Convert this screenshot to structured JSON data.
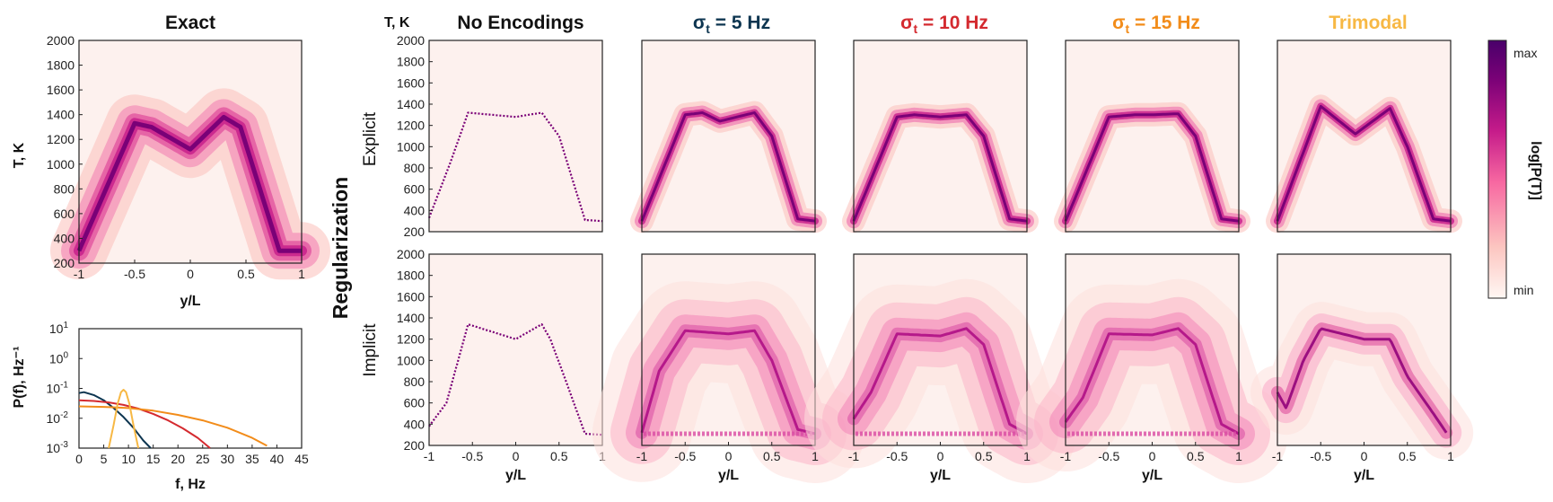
{
  "colors": {
    "background_fill": "#fdf1ee",
    "frame": "#222222",
    "sigma5": "#0d3550",
    "sigma10": "#d42a2f",
    "sigma15": "#f28c1a",
    "trimodal": "#f7b844",
    "colormap": [
      "#fff7f3",
      "#fcc5c0",
      "#f768a1",
      "#c51b8a",
      "#7a0177",
      "#49006a"
    ]
  },
  "titles": {
    "exact": "Exact",
    "no_enc": "No Encodings",
    "s5": "5 Hz",
    "s10": "10 Hz",
    "s15": "15 Hz",
    "trimodal": "Trimodal",
    "sigma_symbol": "σ",
    "sigma_sub": "t",
    "sigma_eq": " = "
  },
  "labels": {
    "T_axis": "T, K",
    "x_axis": "y/L",
    "f_axis": "f, Hz",
    "P_axis": "P(f), Hz⁻¹",
    "regularization": "Regularization",
    "explicit": "Explicit",
    "implicit": "Implicit"
  },
  "colorbar": {
    "max": "max",
    "min": "min",
    "label": "log[P(T)]"
  },
  "chart_data": [
    {
      "type": "heatmap",
      "title": "Exact",
      "xlabel": "y/L",
      "ylabel": "T, K",
      "xlim": [
        -1,
        1
      ],
      "ylim": [
        200,
        2000
      ],
      "xticks": [
        "-1",
        "-0.5",
        "0",
        "0.5",
        "1"
      ],
      "yticks": [
        "200",
        "400",
        "600",
        "800",
        "1000",
        "1200",
        "1400",
        "1600",
        "1800",
        "2000"
      ],
      "mean_profile": {
        "x": [
          -1,
          -0.5,
          -0.35,
          0,
          0.3,
          0.45,
          0.8,
          1
        ],
        "y": [
          300,
          1330,
          1300,
          1120,
          1380,
          1300,
          300,
          300
        ]
      }
    },
    {
      "type": "line",
      "xlabel": "f, Hz",
      "ylabel": "P(f), Hz⁻¹",
      "xlim": [
        0,
        45
      ],
      "ylim": [
        0.001,
        10
      ],
      "yscale": "log",
      "xticks": [
        "0",
        "5",
        "10",
        "15",
        "20",
        "25",
        "30",
        "35",
        "40",
        "45"
      ],
      "yticks": [
        [
          "0.001",
          "10",
          "-3"
        ],
        [
          "0.01",
          "10",
          "-2"
        ],
        [
          "0.1",
          "10",
          "-1"
        ],
        [
          "1",
          "10",
          "0"
        ],
        [
          "10",
          "10",
          "1"
        ]
      ],
      "series": [
        {
          "color": "#0d3550",
          "x": [
            0,
            1,
            3,
            5,
            7,
            9,
            11,
            13,
            14.5
          ],
          "y": [
            0.07,
            0.075,
            0.06,
            0.04,
            0.022,
            0.011,
            0.0048,
            0.0018,
            0.001
          ]
        },
        {
          "color": "#d42a2f",
          "x": [
            0,
            3,
            6,
            9,
            12,
            15,
            18,
            21,
            24,
            26.5
          ],
          "y": [
            0.04,
            0.038,
            0.034,
            0.028,
            0.021,
            0.014,
            0.0085,
            0.0046,
            0.0022,
            0.001
          ]
        },
        {
          "color": "#f28c1a",
          "x": [
            0,
            5,
            10,
            15,
            20,
            25,
            30,
            35,
            38
          ],
          "y": [
            0.025,
            0.024,
            0.022,
            0.018,
            0.013,
            0.0085,
            0.0048,
            0.0022,
            0.0012
          ]
        },
        {
          "color": "#f7b844",
          "x": [
            6,
            7,
            7.8,
            8.5,
            9,
            9.5,
            10.2,
            11,
            12
          ],
          "y": [
            0.001,
            0.006,
            0.03,
            0.075,
            0.09,
            0.075,
            0.03,
            0.006,
            0.001
          ]
        }
      ]
    },
    {
      "type": "heatmap",
      "title": "No Encodings",
      "row": "Explicit",
      "xlim": [
        -1,
        1
      ],
      "ylim": [
        200,
        2000
      ],
      "mean_profile": {
        "x": [
          -1,
          -0.75,
          -0.55,
          0,
          0.3,
          0.5,
          0.8,
          1
        ],
        "y": [
          330,
          860,
          1320,
          1280,
          1320,
          1100,
          310,
          300
        ]
      }
    },
    {
      "type": "heatmap",
      "title": "σt = 5 Hz",
      "row": "Explicit",
      "xlim": [
        -1,
        1
      ],
      "ylim": [
        200,
        2000
      ],
      "mean_profile": {
        "x": [
          -1,
          -0.5,
          -0.3,
          -0.1,
          0.3,
          0.5,
          0.8,
          1
        ],
        "y": [
          300,
          1300,
          1320,
          1240,
          1320,
          1100,
          320,
          300
        ]
      }
    },
    {
      "type": "heatmap",
      "title": "σt = 10 Hz",
      "row": "Explicit",
      "xlim": [
        -1,
        1
      ],
      "ylim": [
        200,
        2000
      ],
      "mean_profile": {
        "x": [
          -1,
          -0.5,
          -0.3,
          0,
          0.3,
          0.5,
          0.8,
          1
        ],
        "y": [
          300,
          1280,
          1300,
          1280,
          1300,
          1100,
          320,
          300
        ]
      }
    },
    {
      "type": "heatmap",
      "title": "σt = 15 Hz",
      "row": "Explicit",
      "xlim": [
        -1,
        1
      ],
      "ylim": [
        200,
        2000
      ],
      "mean_profile": {
        "x": [
          -1,
          -0.5,
          -0.2,
          0,
          0.3,
          0.5,
          0.8,
          1
        ],
        "y": [
          300,
          1280,
          1300,
          1300,
          1310,
          1100,
          320,
          300
        ]
      }
    },
    {
      "type": "heatmap",
      "title": "Trimodal",
      "row": "Explicit",
      "xlim": [
        -1,
        1
      ],
      "ylim": [
        200,
        2000
      ],
      "mean_profile": {
        "x": [
          -1,
          -0.5,
          -0.1,
          0.3,
          0.5,
          0.8,
          1
        ],
        "y": [
          300,
          1380,
          1120,
          1360,
          1000,
          320,
          300
        ]
      }
    },
    {
      "type": "heatmap",
      "title": "No Encodings",
      "row": "Implicit",
      "xlim": [
        -1,
        1
      ],
      "ylim": [
        200,
        2000
      ],
      "mean_profile": {
        "x": [
          -1,
          -0.8,
          -0.55,
          0,
          0.3,
          0.4,
          0.6,
          0.8,
          1
        ],
        "y": [
          380,
          600,
          1340,
          1200,
          1340,
          1200,
          760,
          310,
          300
        ]
      }
    },
    {
      "type": "heatmap",
      "title": "σt = 5 Hz",
      "row": "Implicit",
      "xlim": [
        -1,
        1
      ],
      "ylim": [
        200,
        2000
      ],
      "mean_profile": {
        "x": [
          -1,
          -0.8,
          -0.5,
          0,
          0.3,
          0.5,
          0.8,
          1
        ],
        "y": [
          320,
          900,
          1280,
          1250,
          1280,
          1000,
          350,
          310
        ]
      }
    },
    {
      "type": "heatmap",
      "title": "σt = 10 Hz",
      "row": "Implicit",
      "xlim": [
        -1,
        1
      ],
      "ylim": [
        200,
        2000
      ],
      "mean_profile": {
        "x": [
          -1,
          -0.8,
          -0.5,
          0,
          0.3,
          0.5,
          0.8,
          1
        ],
        "y": [
          450,
          700,
          1250,
          1230,
          1300,
          1150,
          400,
          310
        ]
      }
    },
    {
      "type": "heatmap",
      "title": "σt = 15 Hz",
      "row": "Implicit",
      "xlim": [
        -1,
        1
      ],
      "ylim": [
        200,
        2000
      ],
      "mean_profile": {
        "x": [
          -1,
          -0.8,
          -0.5,
          0,
          0.3,
          0.5,
          0.8,
          1
        ],
        "y": [
          420,
          650,
          1250,
          1240,
          1300,
          1150,
          400,
          310
        ]
      }
    },
    {
      "type": "heatmap",
      "title": "Trimodal",
      "row": "Implicit",
      "xlim": [
        -1,
        1
      ],
      "ylim": [
        200,
        2000
      ],
      "mean_profile": {
        "x": [
          -1,
          -0.9,
          -0.7,
          -0.5,
          0,
          0.3,
          0.5,
          0.8,
          0.95
        ],
        "y": [
          700,
          550,
          1000,
          1300,
          1200,
          1200,
          850,
          500,
          320
        ]
      }
    }
  ]
}
